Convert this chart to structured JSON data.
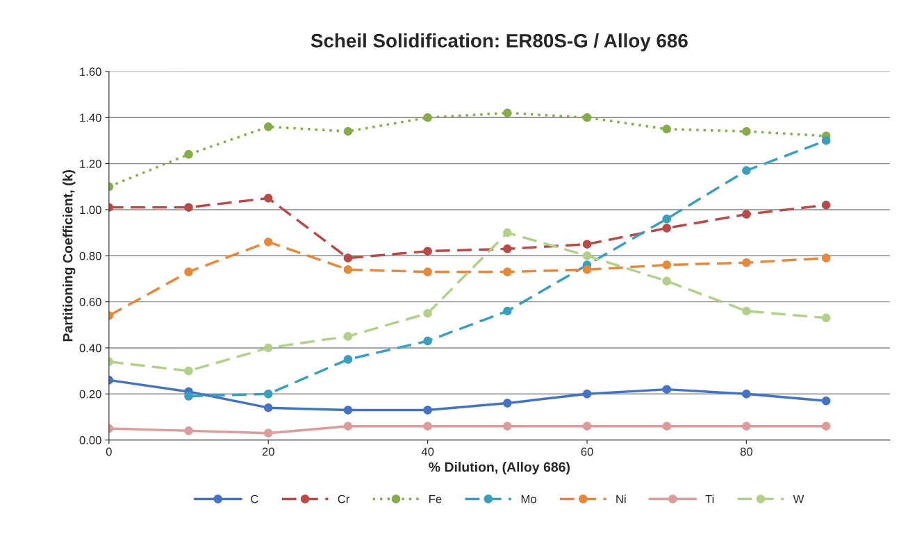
{
  "chart_data": {
    "type": "line",
    "title": "Scheil Solidification: ER80S-G / Alloy 686",
    "xlabel": "% Dilution, (Alloy 686)",
    "ylabel": "Partitioning Coefficient, (k)",
    "x": [
      0,
      10,
      20,
      30,
      40,
      50,
      60,
      70,
      80,
      90
    ],
    "xlim": [
      0,
      98
    ],
    "xticks": [
      0,
      20,
      40,
      60,
      80
    ],
    "ylim": [
      0,
      1.6
    ],
    "yticks": [
      {
        "value": 0,
        "label": "0.00"
      },
      {
        "value": 0.2,
        "label": "0.20"
      },
      {
        "value": 0.4,
        "label": "0.40"
      },
      {
        "value": 0.6,
        "label": "0.60"
      },
      {
        "value": 0.8,
        "label": "0.80"
      },
      {
        "value": 1.0,
        "label": "1.00"
      },
      {
        "value": 1.2,
        "label": "1.20"
      },
      {
        "value": 1.4,
        "label": "1.40"
      },
      {
        "value": 1.6,
        "label": "1.60"
      }
    ],
    "grid": "y",
    "legend": "bottom",
    "marker": "circle",
    "series": [
      {
        "name": "C",
        "color": "#4472c4",
        "line_style": "solid",
        "values": [
          0.26,
          0.21,
          0.14,
          0.13,
          0.13,
          0.16,
          0.2,
          0.22,
          0.2,
          0.17
        ]
      },
      {
        "name": "Cr",
        "color": "#b94a48",
        "line_style": "dashed",
        "values": [
          1.01,
          1.01,
          1.05,
          0.79,
          0.82,
          0.83,
          0.85,
          0.92,
          0.98,
          1.02
        ]
      },
      {
        "name": "Fe",
        "color": "#84ac48",
        "line_style": "dotted",
        "values": [
          1.1,
          1.24,
          1.36,
          1.34,
          1.4,
          1.42,
          1.4,
          1.35,
          1.34,
          1.32
        ]
      },
      {
        "name": "Mo",
        "color": "#3a9fbf",
        "line_style": "dashed",
        "values": [
          null,
          0.19,
          0.2,
          0.35,
          0.43,
          0.56,
          0.76,
          0.96,
          1.17,
          1.3
        ]
      },
      {
        "name": "Ni",
        "color": "#e8883a",
        "line_style": "dashed",
        "values": [
          0.54,
          0.73,
          0.86,
          0.74,
          0.73,
          0.73,
          0.74,
          0.76,
          0.77,
          0.79
        ]
      },
      {
        "name": "Ti",
        "color": "#dc9c9a",
        "line_style": "solid",
        "values": [
          0.05,
          0.04,
          0.03,
          0.06,
          0.06,
          0.06,
          0.06,
          0.06,
          0.06,
          0.06
        ]
      },
      {
        "name": "W",
        "color": "#b3d08a",
        "line_style": "dashed",
        "values": [
          0.34,
          0.3,
          0.4,
          0.45,
          0.55,
          0.9,
          0.8,
          0.69,
          0.56,
          0.53
        ]
      }
    ]
  }
}
